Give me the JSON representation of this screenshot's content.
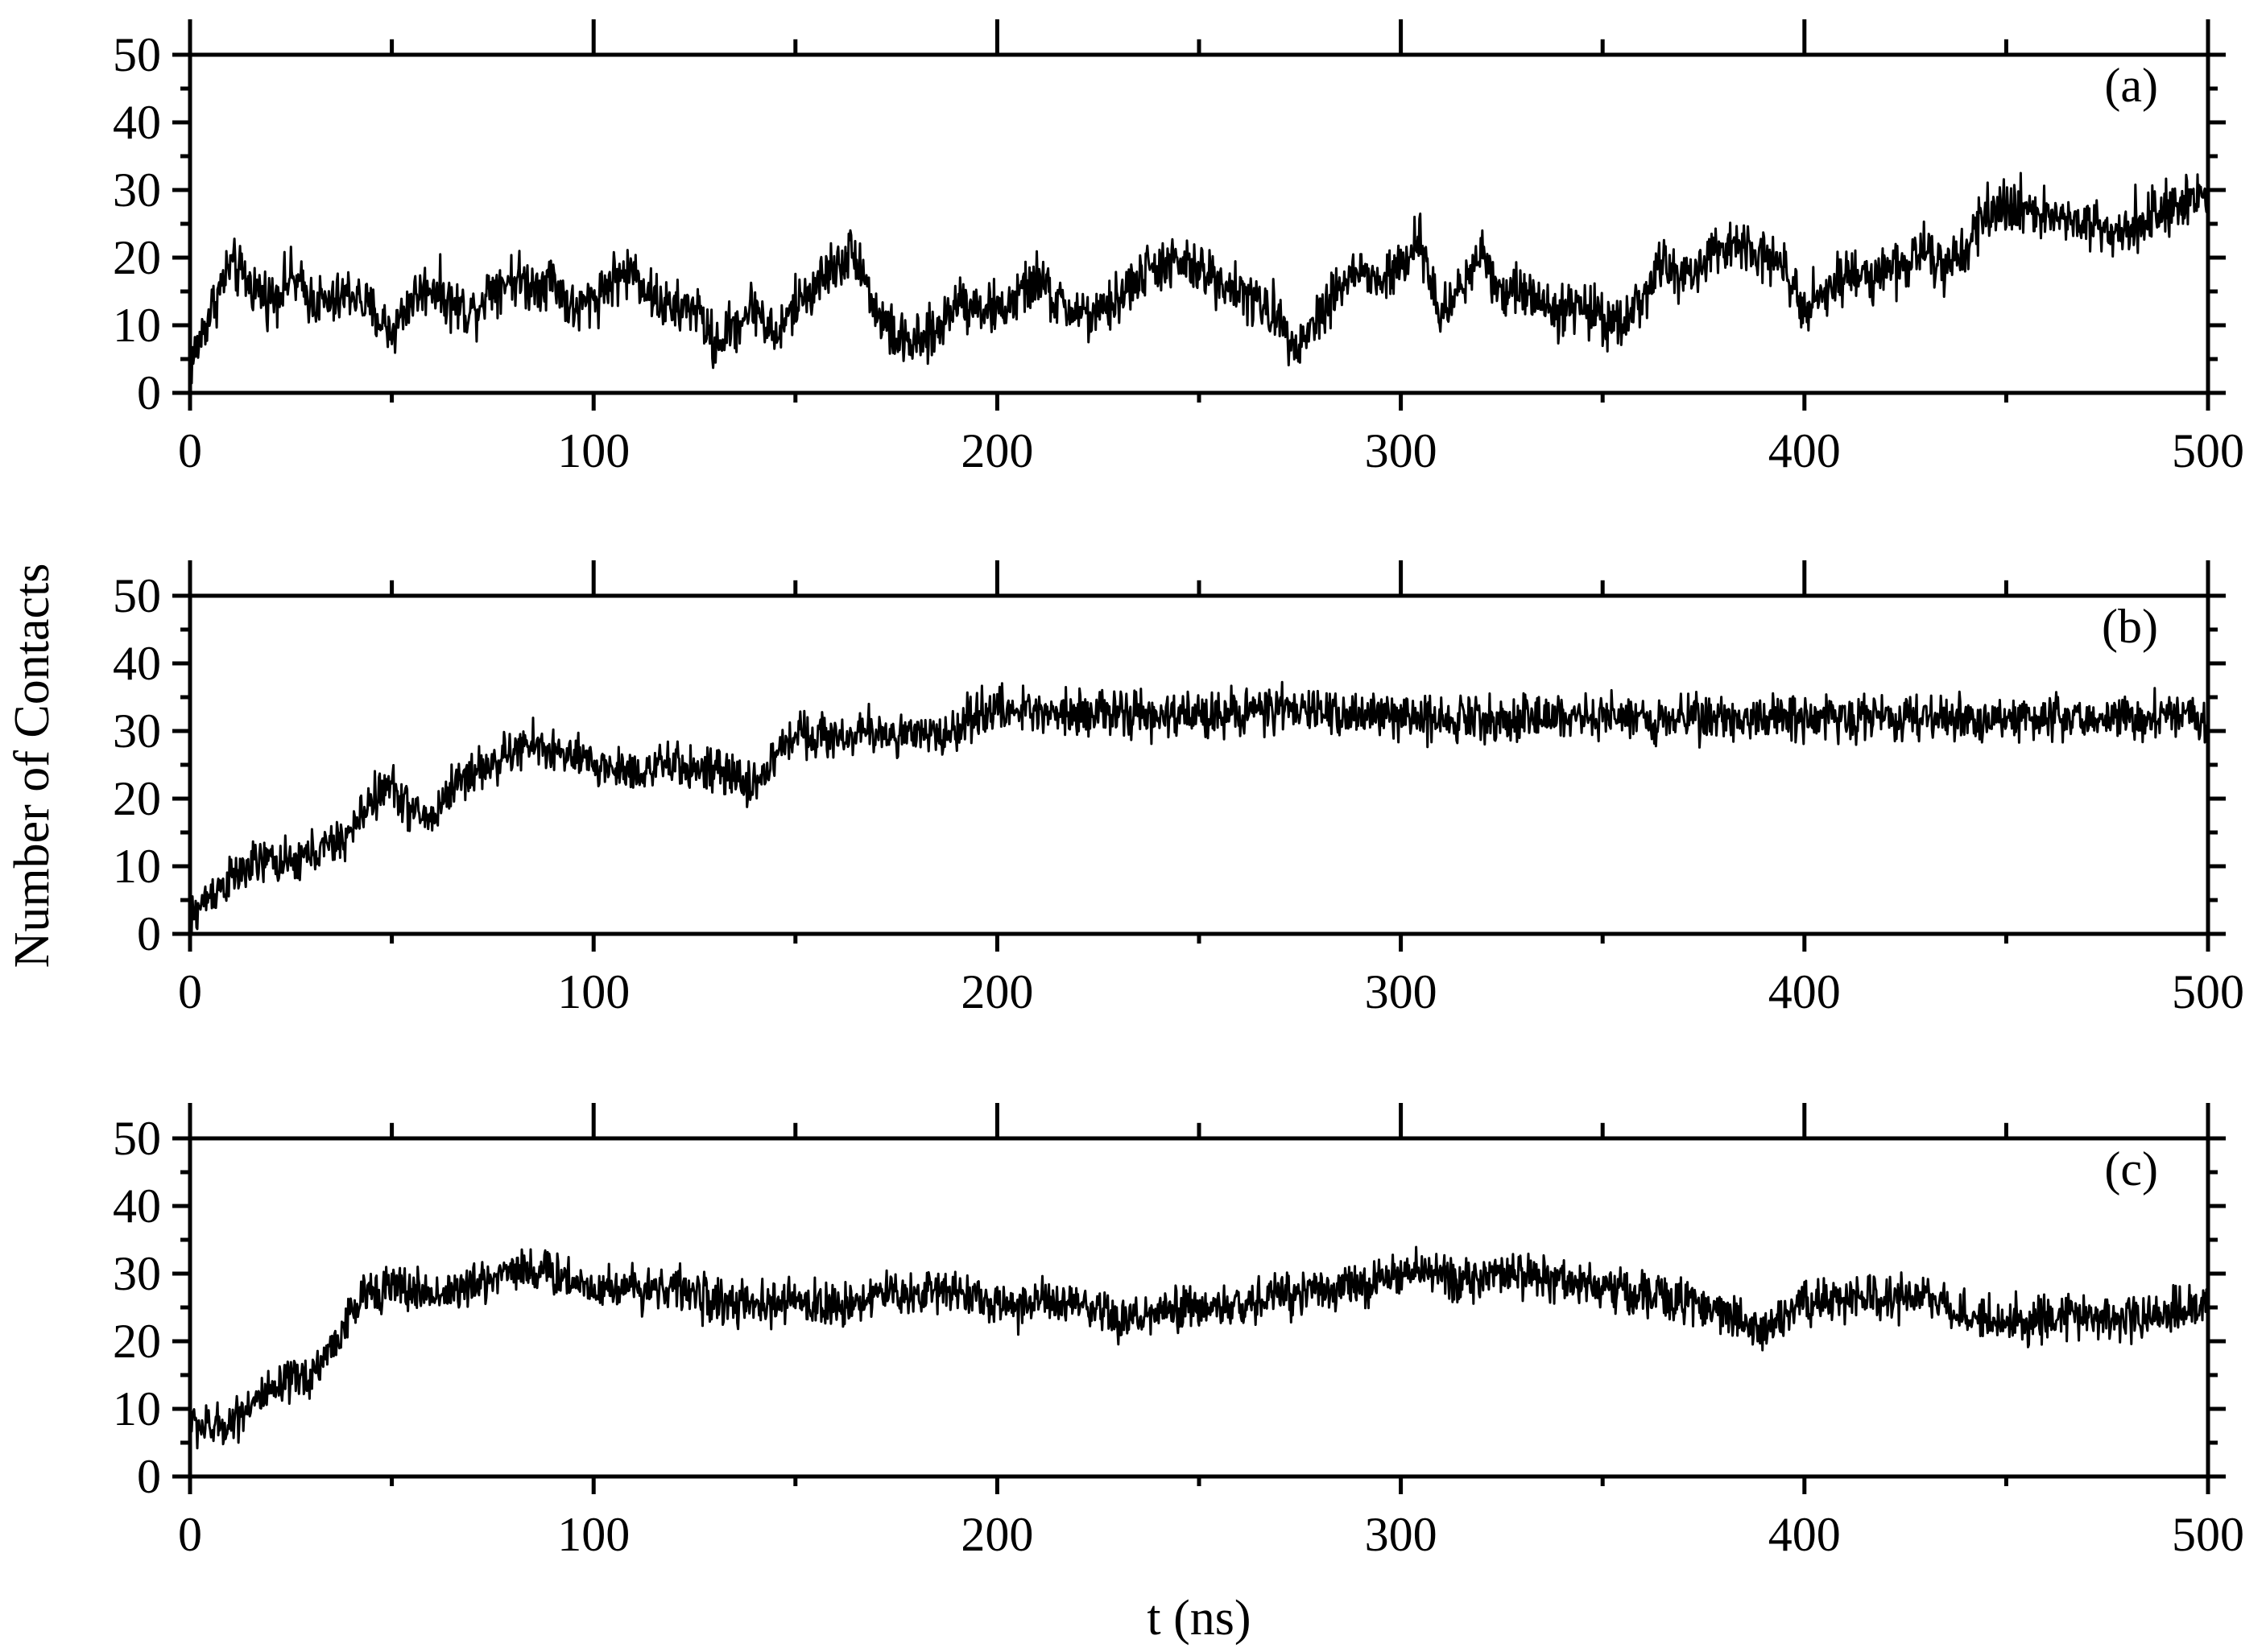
{
  "chart_data": [
    {
      "type": "line",
      "panel_label": "(a)",
      "xlim": [
        0,
        500
      ],
      "ylim": [
        0,
        50
      ],
      "x_ticks": [
        0,
        100,
        200,
        300,
        400,
        500
      ],
      "y_ticks": [
        0,
        10,
        20,
        30,
        40,
        50
      ],
      "grid": false,
      "series": [
        {
          "color": "#000000",
          "x": [
            0,
            5,
            10,
            15,
            20,
            25,
            30,
            35,
            40,
            45,
            50,
            55,
            60,
            65,
            70,
            75,
            80,
            85,
            90,
            95,
            100,
            105,
            110,
            115,
            120,
            125,
            130,
            135,
            140,
            145,
            150,
            155,
            160,
            165,
            170,
            175,
            180,
            185,
            190,
            195,
            200,
            205,
            210,
            215,
            220,
            225,
            230,
            235,
            240,
            245,
            250,
            255,
            260,
            265,
            270,
            275,
            280,
            285,
            290,
            295,
            300,
            305,
            310,
            315,
            320,
            325,
            330,
            335,
            340,
            345,
            350,
            355,
            360,
            365,
            370,
            375,
            380,
            385,
            390,
            395,
            400,
            405,
            410,
            415,
            420,
            425,
            430,
            435,
            440,
            445,
            450,
            455,
            460,
            465,
            470,
            475,
            480,
            485,
            490,
            495,
            500
          ],
          "y": [
            4,
            12,
            19,
            16,
            14,
            17,
            14,
            13,
            15,
            12,
            9,
            14,
            16,
            13,
            12,
            16,
            17,
            16,
            17,
            12,
            14,
            17,
            18,
            14,
            12,
            13,
            7,
            10,
            13,
            8,
            13,
            16,
            19,
            21,
            12,
            8,
            7,
            9,
            14,
            13,
            12,
            14,
            17,
            13,
            12,
            11,
            14,
            17,
            19,
            19,
            18,
            17,
            15,
            13,
            11,
            7,
            12,
            16,
            18,
            16,
            19,
            22,
            11,
            16,
            21,
            15,
            15,
            14,
            12,
            13,
            11,
            11,
            14,
            19,
            17,
            19,
            21,
            23,
            20,
            19,
            13,
            15,
            17,
            18,
            18,
            19,
            21,
            18,
            20,
            27,
            27,
            28,
            26,
            26,
            25,
            24,
            25,
            26,
            27,
            28,
            29
          ],
          "noise": 3
        }
      ]
    },
    {
      "type": "line",
      "panel_label": "(b)",
      "ylabel": "Number of Contacts",
      "xlim": [
        0,
        500
      ],
      "ylim": [
        0,
        50
      ],
      "x_ticks": [
        0,
        100,
        200,
        300,
        400,
        500
      ],
      "y_ticks": [
        0,
        10,
        20,
        30,
        40,
        50
      ],
      "grid": false,
      "series": [
        {
          "color": "#000000",
          "x": [
            0,
            5,
            10,
            15,
            20,
            25,
            30,
            35,
            40,
            45,
            50,
            55,
            60,
            65,
            70,
            75,
            80,
            85,
            90,
            95,
            100,
            110,
            120,
            130,
            140,
            145,
            150,
            160,
            170,
            180,
            190,
            195,
            200,
            220,
            240,
            260,
            280,
            300,
            320,
            340,
            360,
            380,
            400,
            420,
            440,
            460,
            480,
            500
          ],
          "y": [
            2,
            6,
            8,
            10,
            11,
            10,
            12,
            13,
            15,
            20,
            22,
            18,
            17,
            22,
            24,
            25,
            27,
            28,
            27,
            26,
            25,
            24,
            25,
            24,
            22,
            26,
            30,
            29,
            30,
            29,
            30,
            33,
            33,
            33,
            32,
            33,
            33,
            32,
            32,
            32,
            32,
            32,
            32,
            32,
            32,
            32,
            32,
            32
          ],
          "noise": 2.5
        }
      ]
    },
    {
      "type": "line",
      "panel_label": "(c)",
      "xlabel": "t (ns)",
      "xlim": [
        0,
        500
      ],
      "ylim": [
        0,
        50
      ],
      "x_ticks": [
        0,
        100,
        200,
        300,
        400,
        500
      ],
      "y_ticks": [
        0,
        10,
        20,
        30,
        40,
        50
      ],
      "grid": false,
      "series": [
        {
          "color": "#000000",
          "x": [
            0,
            5,
            10,
            15,
            20,
            25,
            30,
            35,
            40,
            45,
            50,
            60,
            70,
            80,
            90,
            100,
            110,
            120,
            130,
            140,
            150,
            160,
            170,
            180,
            190,
            200,
            210,
            220,
            230,
            240,
            250,
            260,
            270,
            280,
            290,
            300,
            310,
            320,
            330,
            340,
            350,
            360,
            370,
            380,
            390,
            400,
            410,
            420,
            430,
            440,
            450,
            460,
            470,
            480,
            490,
            500
          ],
          "y": [
            8,
            7,
            8,
            11,
            12,
            14,
            15,
            19,
            24,
            28,
            28,
            27,
            28,
            31,
            30,
            28,
            28,
            28,
            26,
            25,
            26,
            25,
            27,
            27,
            28,
            25,
            26,
            25,
            23,
            24,
            25,
            25,
            27,
            28,
            28,
            30,
            30,
            29,
            30,
            29,
            28,
            27,
            26,
            24,
            22,
            26,
            26,
            26,
            27,
            24,
            23,
            23,
            24,
            23,
            24,
            26
          ],
          "noise": 2.5
        }
      ]
    }
  ]
}
